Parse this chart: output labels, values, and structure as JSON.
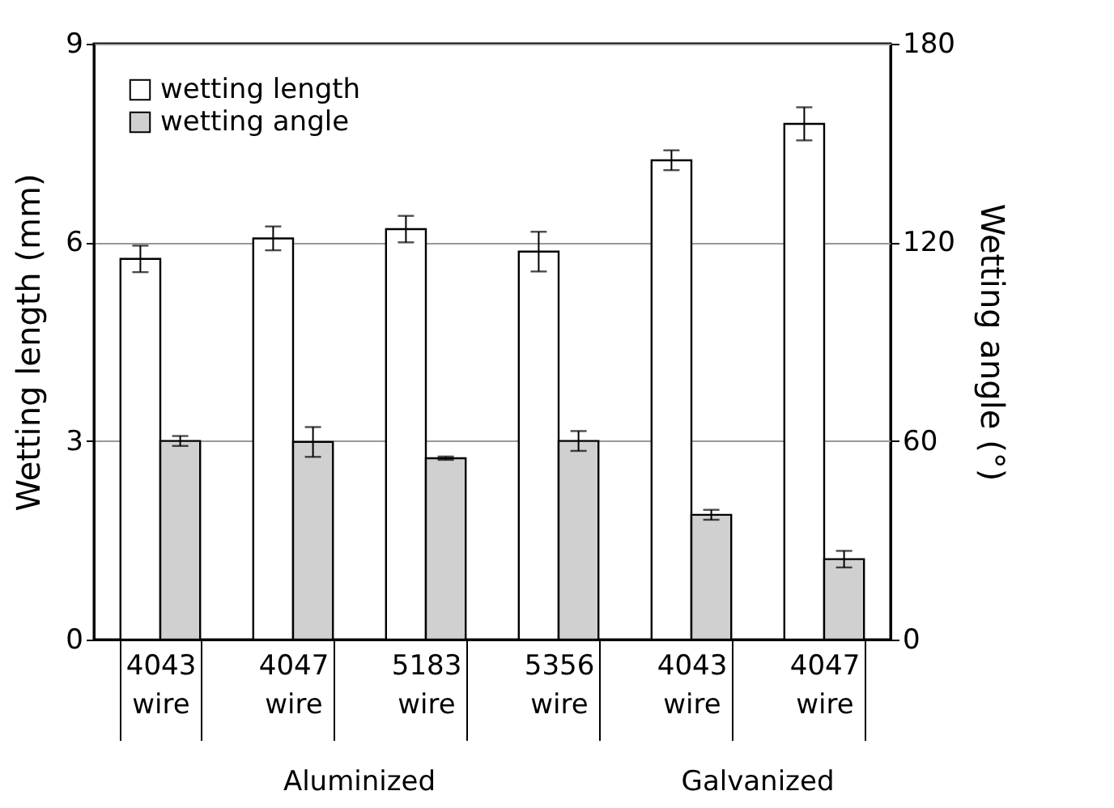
{
  "chart_data": {
    "type": "bar",
    "categories": [
      "4043 wire",
      "4047 wire",
      "5183 wire",
      "5356 wire",
      "4043 wire",
      "4047 wire"
    ],
    "series": [
      {
        "name": "wetting length",
        "color": "#ffffff",
        "values": [
          5.75,
          6.06,
          6.2,
          5.86,
          7.24,
          7.79
        ],
        "errors": [
          0.2,
          0.18,
          0.2,
          0.3,
          0.15,
          0.25
        ]
      },
      {
        "name": "wetting angle",
        "color": "#d0d0d0",
        "axis": "y2",
        "values": [
          60,
          59.7,
          54.8,
          60,
          37.7,
          24.3
        ],
        "errors": [
          1.5,
          4.5,
          0.5,
          3,
          1.5,
          2.5
        ]
      }
    ],
    "ylabel": "Wetting length (mm)",
    "y2label": "Wetting angle (°)",
    "ylim": [
      0,
      9
    ],
    "yticks": [
      0,
      3,
      6,
      9
    ],
    "y2lim": [
      0,
      180
    ],
    "y2ticks": [
      0,
      60,
      120,
      180
    ],
    "annotations": [
      "Aluminized",
      "Galvanized"
    ],
    "grid": "y",
    "legend": "top left"
  }
}
